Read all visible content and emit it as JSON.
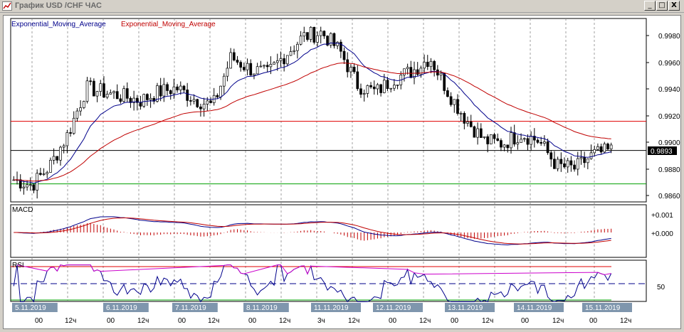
{
  "window": {
    "title": "График USD /CHF ЧАС",
    "buttons": {
      "minimize": "_",
      "maximize": "□",
      "close": "X"
    }
  },
  "legend": {
    "ema_fast": "Exponential_Moving_Average",
    "ema_slow": "Exponential_Moving_Average"
  },
  "colors": {
    "ema_fast": "#00008b",
    "ema_slow": "#c00000",
    "upper_level": "#e00000",
    "lower_level": "#00a000",
    "price_line": "#000000",
    "overbought": "#cc00cc",
    "date_tag": "#7f96ad"
  },
  "price_panel": {
    "y_ticks": [
      "0.9980",
      "0.9960",
      "0.9940",
      "0.9920",
      "0.9900",
      "0.9880",
      "0.9860"
    ],
    "current_price": "0.9893"
  },
  "macd_panel": {
    "label": "MACD",
    "y_ticks": [
      "+0.001",
      "+0.000"
    ]
  },
  "rsi_panel": {
    "label": "RSI",
    "y_ticks": [
      "50"
    ]
  },
  "dates": [
    "5.11.2019",
    "6.11.2019",
    "7.11.2019",
    "8.11.2019",
    "11.11.2019",
    "12.11.2019",
    "13.11.2019",
    "14.11.2019",
    "15.11.2019"
  ],
  "hour_labels": [
    "00",
    "12ч",
    "00",
    "12ч",
    "00",
    "12ч",
    "00",
    "12ч",
    "3ч",
    "12ч",
    "00",
    "12ч",
    "00",
    "12ч",
    "00",
    "12ч",
    "00",
    "12ч"
  ],
  "chart_data": {
    "type": "line",
    "title": "График USD /CHF ЧАС",
    "ylim": [
      0.9856,
      0.9988
    ],
    "current_price": 0.9893,
    "horizontal_levels": [
      0.9914,
      0.9893,
      0.9869
    ],
    "x": [
      "5.11.2019",
      "6.11.2019",
      "7.11.2019",
      "8.11.2019",
      "11.11.2019",
      "12.11.2019",
      "13.11.2019",
      "14.11.2019",
      "15.11.2019"
    ],
    "series": [
      {
        "name": "Exponential_Moving_Average",
        "values": [
          0.987,
          0.992,
          0.9928,
          0.9948,
          0.997,
          0.9945,
          0.994,
          0.9902,
          0.989
        ]
      },
      {
        "name": "Exponential_Moving_Average",
        "values": [
          0.987,
          0.99,
          0.992,
          0.9935,
          0.9952,
          0.995,
          0.9945,
          0.992,
          0.99
        ]
      }
    ]
  }
}
